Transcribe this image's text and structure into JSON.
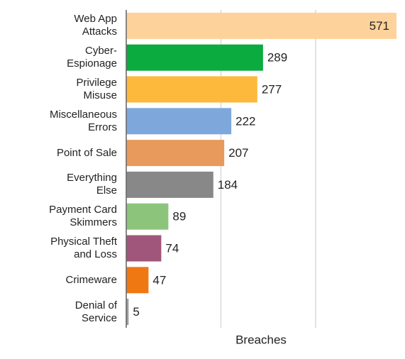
{
  "chart_data": {
    "type": "bar",
    "orientation": "horizontal",
    "x_label": "Breaches",
    "categories": [
      "Web App\nAttacks",
      "Cyber-\nEspionage",
      "Privilege\nMisuse",
      "Miscellaneous\nErrors",
      "Point of Sale",
      "Everything\nElse",
      "Payment Card\nSkimmers",
      "Physical Theft\nand Loss",
      "Crimeware",
      "Denial of\nService"
    ],
    "values": [
      571,
      289,
      277,
      222,
      207,
      184,
      89,
      74,
      47,
      5
    ],
    "colors": [
      "#fdd39b",
      "#0bab3f",
      "#fdb93b",
      "#7ea8dc",
      "#e79a5c",
      "#888888",
      "#8cc47c",
      "#a0567a",
      "#f07812",
      "#9e9e9e"
    ],
    "xlim": [
      0,
      571
    ],
    "xticks": [
      0,
      200,
      400
    ],
    "grid": true
  }
}
